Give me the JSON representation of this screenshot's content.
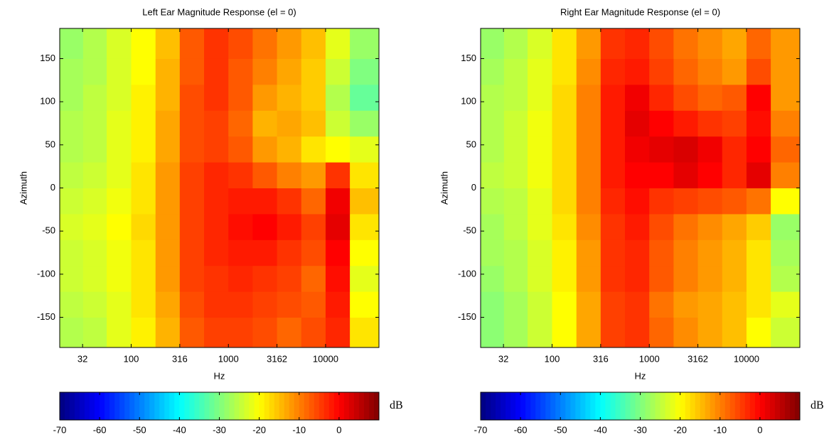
{
  "chart_data": [
    {
      "type": "heatmap",
      "title": "Left Ear Magnitude Response (el = 0)",
      "xlabel": "Hz",
      "ylabel": "Azimuth",
      "xscale": "log",
      "xlim": [
        18.4,
        35400
      ],
      "ylim": [
        -185,
        185
      ],
      "xticks": [
        {
          "value": 31.62,
          "label": "32"
        },
        100,
        {
          "value": 316.2,
          "label": "316"
        },
        1000,
        {
          "value": 3162.3,
          "label": "3162"
        },
        10000
      ],
      "yticks": [
        -150,
        -100,
        -50,
        0,
        50,
        100,
        150
      ],
      "x_edges": [
        18.4,
        32,
        56,
        100,
        178,
        316,
        562,
        1000,
        1778,
        3162,
        5623,
        10000,
        17783,
        35400
      ],
      "y_edges": [
        -185,
        -150,
        -120,
        -90,
        -60,
        -30,
        0,
        30,
        60,
        90,
        120,
        150,
        185
      ],
      "values": [
        [
          -26,
          -25,
          -22,
          -19,
          -14,
          -7,
          -5,
          -5,
          -6,
          -8,
          -6,
          -3,
          -18
        ],
        [
          -25,
          -24,
          -22,
          -18,
          -13,
          -6,
          -4,
          -4,
          -5,
          -6,
          -7,
          -2,
          -20
        ],
        [
          -24,
          -23,
          -21,
          -18,
          -12,
          -5,
          -4,
          -3,
          -4,
          -5,
          -8,
          -1,
          -22
        ],
        [
          -24,
          -23,
          -21,
          -18,
          -12,
          -5,
          -3,
          -2,
          -2,
          -4,
          -6,
          0,
          -20
        ],
        [
          -23,
          -22,
          -20,
          -17,
          -12,
          -5,
          -3,
          -1,
          0,
          -2,
          -5,
          2,
          -18
        ],
        [
          -24,
          -23,
          -21,
          -18,
          -12,
          -5,
          -3,
          -2,
          -2,
          -4,
          -8,
          1,
          -15
        ],
        [
          -25,
          -24,
          -22,
          -18,
          -12,
          -5,
          -3,
          -4,
          -7,
          -10,
          -12,
          -4,
          -18
        ],
        [
          -26,
          -25,
          -22,
          -19,
          -13,
          -6,
          -5,
          -7,
          -12,
          -14,
          -18,
          -20,
          -22
        ],
        [
          -26,
          -25,
          -22,
          -19,
          -13,
          -6,
          -5,
          -8,
          -14,
          -13,
          -15,
          -24,
          -28
        ],
        [
          -27,
          -25,
          -23,
          -19,
          -14,
          -6,
          -4,
          -7,
          -12,
          -14,
          -16,
          -26,
          -32
        ],
        [
          -27,
          -26,
          -23,
          -20,
          -14,
          -7,
          -4,
          -7,
          -10,
          -13,
          -16,
          -24,
          -30
        ],
        [
          -28,
          -26,
          -23,
          -20,
          -15,
          -7,
          -4,
          -6,
          -9,
          -12,
          -15,
          -22,
          -28
        ]
      ],
      "colormap": "jet",
      "clim": [
        -70,
        10
      ],
      "cticks": [
        -70,
        -60,
        -50,
        -40,
        -30,
        -20,
        -10,
        0
      ],
      "clabel": "dB"
    },
    {
      "type": "heatmap",
      "title": "Right Ear Magnitude Response (el = 0)",
      "xlabel": "Hz",
      "ylabel": "Azimuth",
      "xscale": "log",
      "xlim": [
        18.4,
        35400
      ],
      "ylim": [
        -185,
        185
      ],
      "xticks": [
        {
          "value": 31.62,
          "label": "32"
        },
        100,
        {
          "value": 316.2,
          "label": "316"
        },
        1000,
        {
          "value": 3162.3,
          "label": "3162"
        },
        10000
      ],
      "yticks": [
        -150,
        -100,
        -50,
        0,
        50,
        100,
        150
      ],
      "x_edges": [
        18.4,
        32,
        56,
        100,
        178,
        316,
        562,
        1000,
        1778,
        3162,
        5623,
        10000,
        17783,
        35400
      ],
      "y_edges": [
        -185,
        -150,
        -120,
        -90,
        -60,
        -30,
        0,
        30,
        60,
        90,
        120,
        150,
        185
      ],
      "values": [
        [
          -29,
          -27,
          -24,
          -20,
          -13,
          -5,
          -4,
          -8,
          -11,
          -13,
          -15,
          -20,
          -24
        ],
        [
          -29,
          -27,
          -24,
          -20,
          -13,
          -5,
          -4,
          -9,
          -12,
          -13,
          -15,
          -18,
          -22
        ],
        [
          -28,
          -26,
          -23,
          -19,
          -12,
          -4,
          -3,
          -7,
          -10,
          -12,
          -14,
          -18,
          -26
        ],
        [
          -27,
          -26,
          -23,
          -19,
          -12,
          -4,
          -3,
          -7,
          -10,
          -12,
          -14,
          -18,
          -27
        ],
        [
          -27,
          -25,
          -22,
          -18,
          -11,
          -4,
          -2,
          -6,
          -9,
          -11,
          -13,
          -16,
          -28
        ],
        [
          -26,
          -25,
          -22,
          -17,
          -10,
          -3,
          -1,
          -4,
          -5,
          -6,
          -7,
          -9,
          -20
        ],
        [
          -25,
          -24,
          -21,
          -17,
          -10,
          -2,
          0,
          0,
          2,
          0,
          -3,
          2,
          -10
        ],
        [
          -26,
          -24,
          -21,
          -17,
          -10,
          -2,
          1,
          2,
          3,
          1,
          -3,
          0,
          -8
        ],
        [
          -26,
          -24,
          -21,
          -17,
          -10,
          -2,
          2,
          0,
          -2,
          -4,
          -5,
          -1,
          -10
        ],
        [
          -26,
          -25,
          -22,
          -17,
          -10,
          -2,
          1,
          -3,
          -6,
          -8,
          -7,
          0,
          -12
        ],
        [
          -27,
          -25,
          -22,
          -18,
          -11,
          -3,
          -2,
          -5,
          -8,
          -10,
          -12,
          -6,
          -12
        ],
        [
          -28,
          -26,
          -23,
          -18,
          -12,
          -4,
          -3,
          -6,
          -9,
          -11,
          -13,
          -8,
          -12
        ]
      ],
      "colormap": "jet",
      "clim": [
        -70,
        10
      ],
      "cticks": [
        -70,
        -60,
        -50,
        -40,
        -30,
        -20,
        -10,
        0
      ],
      "clabel": "dB"
    }
  ]
}
